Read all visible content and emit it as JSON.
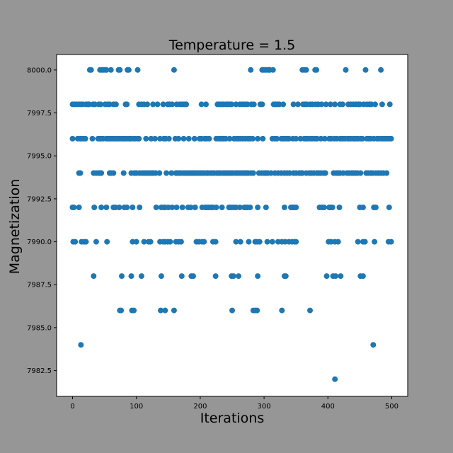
{
  "chart_data": {
    "type": "scatter",
    "title": "Temperature = 1.5",
    "xlabel": "Iterations",
    "ylabel": "Magnetization",
    "xlim": [
      -25,
      525
    ],
    "ylim": [
      7981,
      8000.9
    ],
    "xticks": [
      0,
      100,
      200,
      300,
      400,
      500
    ],
    "xtick_labels": [
      "0",
      "100",
      "200",
      "300",
      "400",
      "500"
    ],
    "yticks": [
      7982.5,
      7985.0,
      7987.5,
      7990.0,
      7992.5,
      7995.0,
      7997.5,
      8000.0
    ],
    "ytick_labels": [
      "7982.5",
      "7985.0",
      "7987.5",
      "7990.0",
      "7992.5",
      "7995.0",
      "7997.5",
      "8000.0"
    ],
    "grid": false,
    "marker_color": "#1f77b4",
    "series": [
      {
        "values": {
          "8000": [
            27,
            29,
            43,
            46,
            48,
            51,
            53,
            60,
            72,
            74,
            86,
            88,
            102,
            159,
            279,
            297,
            299,
            301,
            304,
            307,
            309,
            314,
            360,
            363,
            366,
            380,
            382,
            428,
            459,
            483
          ],
          "7998": [
            0,
            3,
            6,
            10,
            13,
            16,
            21,
            24,
            26,
            32,
            35,
            41,
            44,
            51,
            55,
            58,
            64,
            68,
            83,
            85,
            104,
            108,
            112,
            117,
            126,
            133,
            142,
            149,
            152,
            156,
            163,
            168,
            172,
            175,
            178,
            202,
            209,
            227,
            230,
            233,
            236,
            240,
            243,
            246,
            249,
            256,
            262,
            266,
            270,
            274,
            280,
            284,
            294,
            297,
            315,
            318,
            321,
            324,
            330,
            346,
            353,
            361,
            364,
            367,
            372,
            376,
            381,
            385,
            390,
            397,
            404,
            411,
            419,
            423,
            432,
            436,
            440,
            444,
            448,
            450,
            456,
            461,
            465,
            468,
            474,
            485,
            497
          ],
          "7996": [
            0,
            8,
            12,
            14,
            17,
            20,
            31,
            40,
            43,
            45,
            48,
            53,
            56,
            58,
            61,
            64,
            66,
            69,
            71,
            74,
            77,
            80,
            82,
            85,
            88,
            90,
            92,
            96,
            98,
            102,
            104,
            115,
            123,
            129,
            137,
            143,
            146,
            151,
            161,
            166,
            174,
            182,
            191,
            199,
            202,
            207,
            210,
            214,
            225,
            229,
            232,
            235,
            237,
            240,
            246,
            253,
            257,
            260,
            263,
            267,
            271,
            275,
            278,
            282,
            290,
            298,
            313,
            317,
            320,
            327,
            330,
            333,
            336,
            339,
            345,
            350,
            357,
            363,
            366,
            369,
            373,
            376,
            380,
            383,
            389,
            395,
            402,
            405,
            410,
            414,
            419,
            421,
            424,
            427,
            431,
            433,
            436,
            440,
            442,
            444,
            447,
            451,
            454,
            461,
            464,
            467,
            472,
            477,
            480,
            484,
            487,
            490,
            493,
            496,
            499
          ],
          "7994": [
            10,
            12,
            33,
            37,
            41,
            43,
            45,
            58,
            60,
            64,
            80,
            92,
            97,
            100,
            105,
            109,
            112,
            115,
            118,
            121,
            124,
            126,
            130,
            136,
            147,
            155,
            162,
            164,
            167,
            170,
            174,
            177,
            180,
            183,
            186,
            189,
            191,
            194,
            197,
            200,
            203,
            206,
            210,
            212,
            216,
            219,
            222,
            226,
            229,
            232,
            236,
            239,
            242,
            245,
            248,
            251,
            255,
            258,
            261,
            264,
            267,
            270,
            273,
            275,
            279,
            283,
            292,
            296,
            300,
            303,
            306,
            311,
            317,
            322,
            327,
            332,
            336,
            340,
            346,
            350,
            355,
            358,
            360,
            366,
            371,
            374,
            378,
            383,
            386,
            389,
            393,
            396,
            409,
            413,
            416,
            419,
            424,
            430,
            433,
            437,
            440,
            443,
            446,
            451,
            460,
            463,
            467,
            470,
            475,
            479,
            483,
            487,
            492
          ],
          "7992": [
            0,
            2,
            10,
            34,
            45,
            53,
            64,
            67,
            73,
            81,
            85,
            94,
            105,
            131,
            139,
            143,
            145,
            150,
            156,
            163,
            172,
            181,
            185,
            192,
            203,
            208,
            210,
            213,
            217,
            220,
            225,
            234,
            245,
            248,
            252,
            256,
            262,
            269,
            271,
            274,
            278,
            290,
            303,
            332,
            342,
            345,
            347,
            350,
            387,
            391,
            394,
            402,
            404,
            407,
            418,
            450,
            455,
            472,
            475,
            496
          ],
          "7990": [
            1,
            4,
            14,
            18,
            21,
            37,
            54,
            94,
            100,
            112,
            119,
            122,
            137,
            142,
            145,
            149,
            153,
            162,
            166,
            170,
            194,
            198,
            203,
            206,
            220,
            224,
            256,
            263,
            276,
            286,
            289,
            293,
            305,
            313,
            322,
            328,
            333,
            339,
            344,
            348,
            350,
            401,
            405,
            411,
            416,
            447,
            455,
            458,
            473,
            495,
            499
          ],
          "7988": [
            33,
            77,
            92,
            108,
            139,
            171,
            186,
            189,
            224,
            249,
            252,
            260,
            290,
            332,
            334,
            398,
            408,
            412,
            420,
            451,
            455
          ],
          "7986": [
            74,
            76,
            93,
            96,
            138,
            145,
            159,
            250,
            283,
            286,
            289,
            328,
            372
          ],
          "7984": [
            13,
            471
          ],
          "7982": [
            411
          ]
        }
      }
    ]
  }
}
